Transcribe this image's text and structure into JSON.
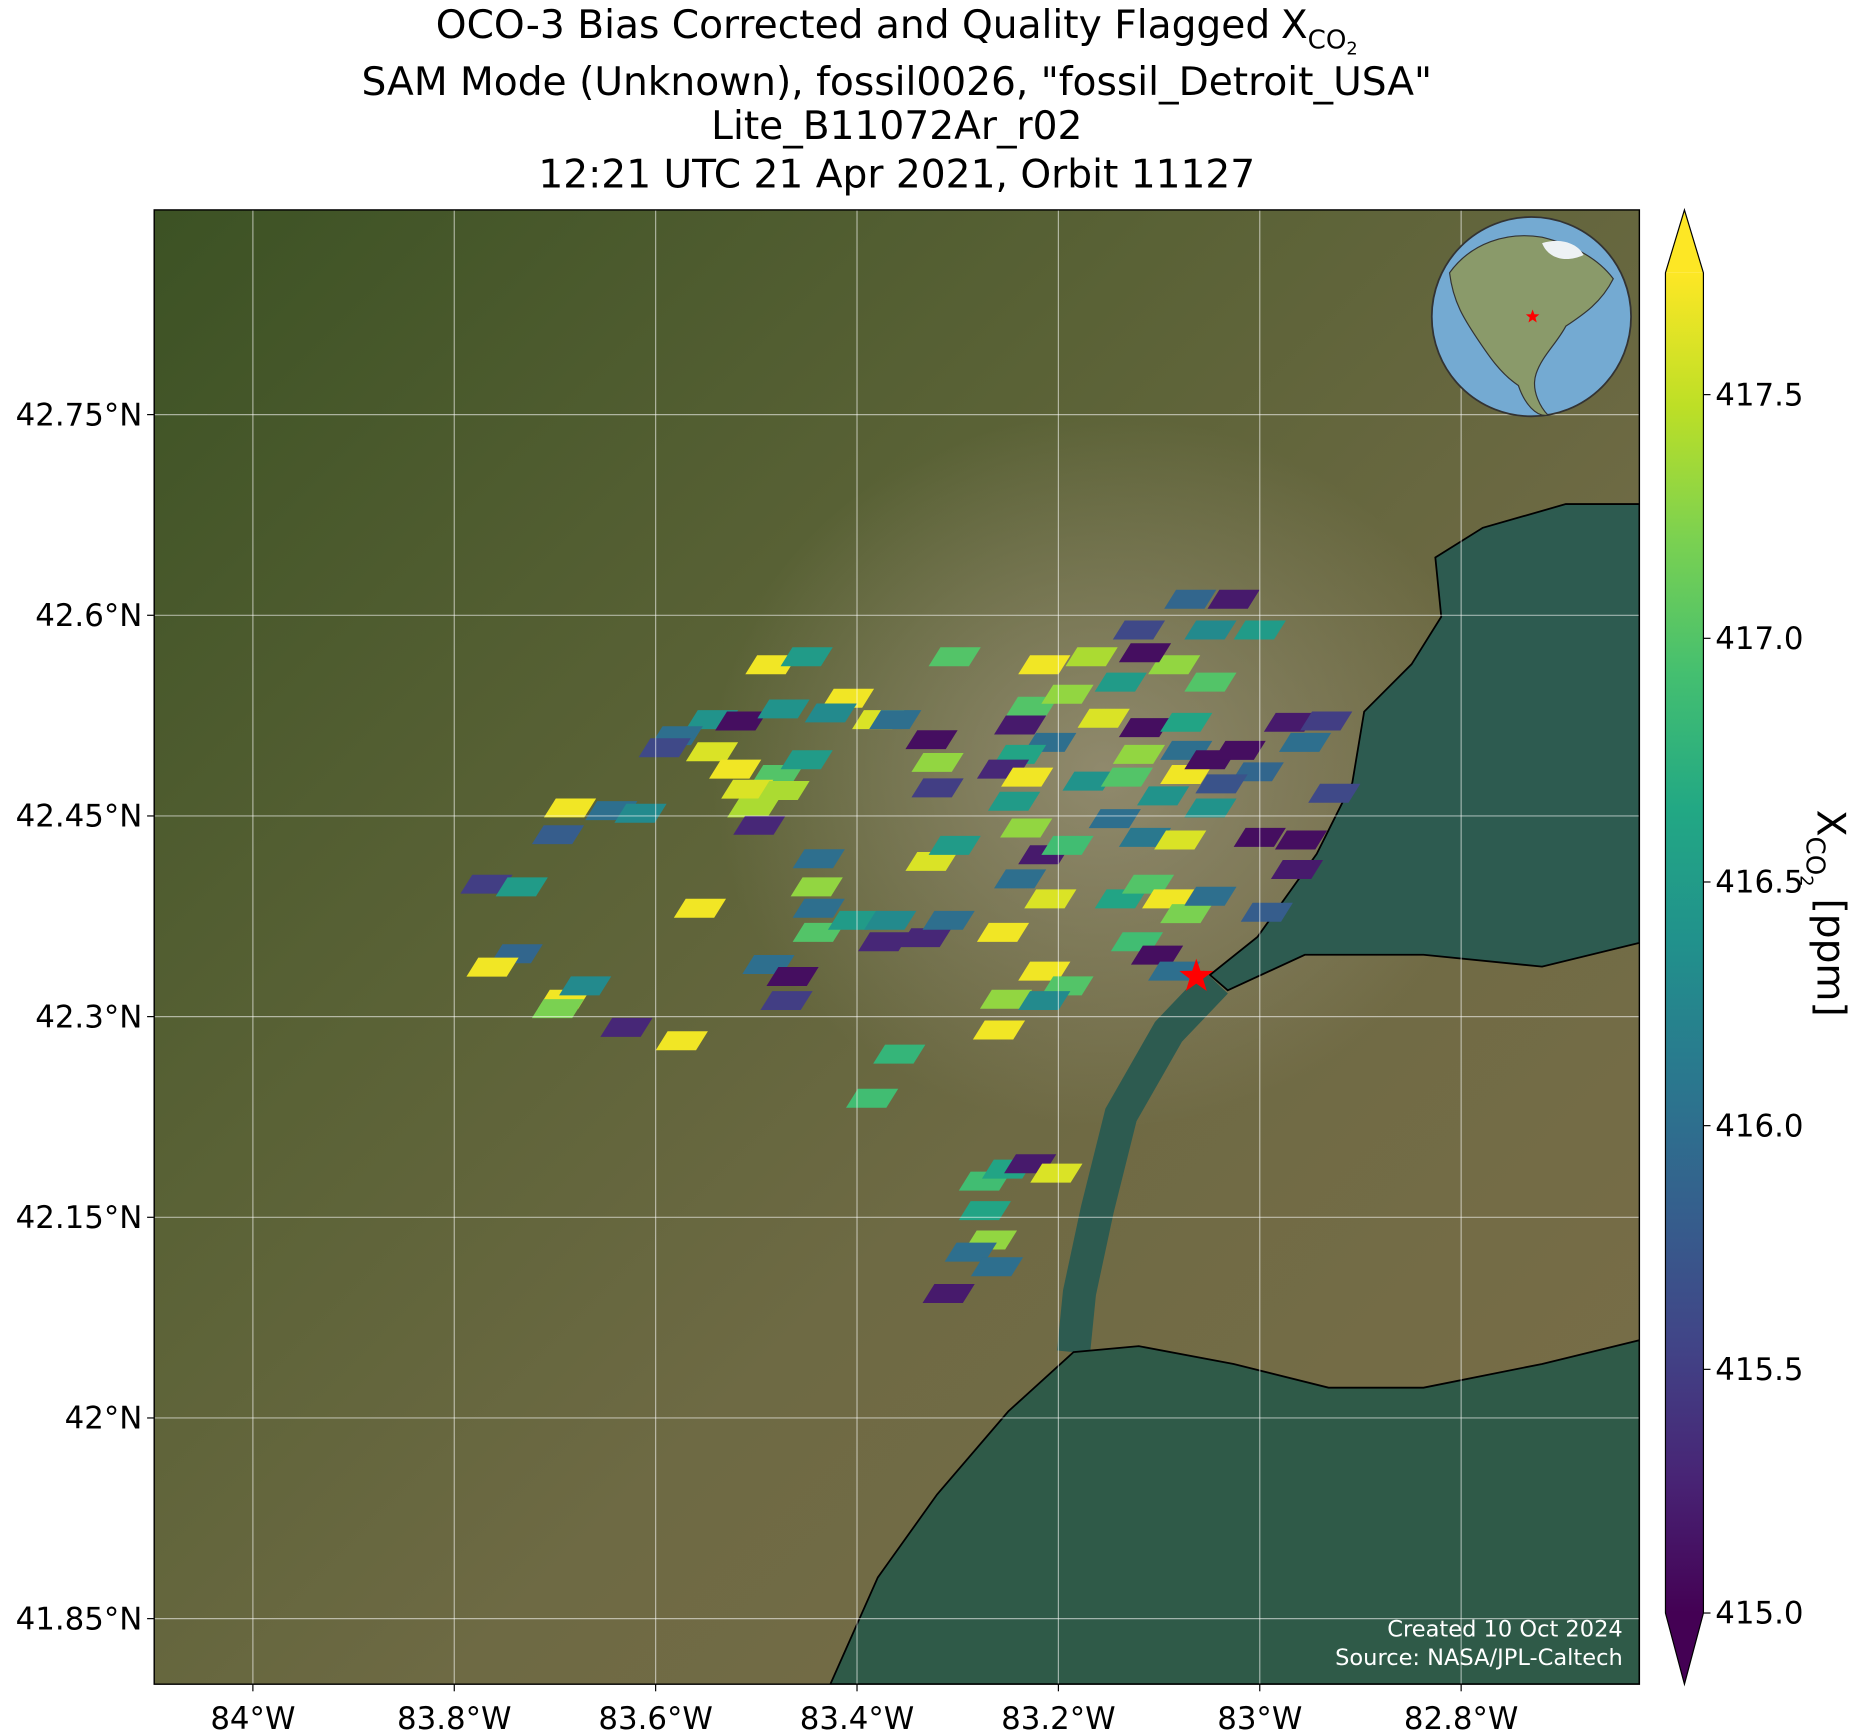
{
  "chart_data": {
    "type": "map",
    "title_lines": [
      "OCO-3 Bias Corrected and Quality Flagged",
      "SAM Mode (Unknown), fossil0026, \"fossil_Detroit_USA\"",
      "Lite_B11072Ar_r02",
      "12:21 UTC 21 Apr 2021, Orbit 11127"
    ],
    "quantity": {
      "symbol": "X",
      "sub": "CO",
      "sub2": "2"
    },
    "xlim": [
      -84.098,
      -82.623
    ],
    "ylim": [
      41.801,
      42.903
    ],
    "xticks": [
      {
        "value": -84,
        "label": "84°W"
      },
      {
        "value": -83.8,
        "label": "83.8°W"
      },
      {
        "value": -83.6,
        "label": "83.6°W"
      },
      {
        "value": -83.4,
        "label": "83.4°W"
      },
      {
        "value": -83.2,
        "label": "83.2°W"
      },
      {
        "value": -83,
        "label": "83°W"
      },
      {
        "value": -82.8,
        "label": "82.8°W"
      }
    ],
    "yticks": [
      {
        "value": 41.85,
        "label": "41.85°N"
      },
      {
        "value": 42,
        "label": "42°N"
      },
      {
        "value": 42.15,
        "label": "42.15°N"
      },
      {
        "value": 42.3,
        "label": "42.3°N"
      },
      {
        "value": 42.45,
        "label": "42.45°N"
      },
      {
        "value": 42.6,
        "label": "42.6°N"
      },
      {
        "value": 42.75,
        "label": "42.75°N"
      }
    ],
    "grid": true,
    "soundings": {
      "x": [
        -83.485,
        -83.45,
        -83.409,
        -83.379,
        -83.544,
        -83.579,
        -83.515,
        -83.473,
        -83.426,
        -83.362,
        -83.591,
        -83.544,
        -83.521,
        -83.479,
        -83.45,
        -83.509,
        -83.473,
        -83.503,
        -83.497,
        -83.326,
        -83.32,
        -83.32,
        -83.303,
        -83.685,
        -83.644,
        -83.697,
        -83.615,
        -83.768,
        -83.733,
        -83.556,
        -83.438,
        -83.44,
        -83.438,
        -83.438,
        -83.403,
        -83.367,
        -83.373,
        -83.332,
        -83.309,
        -83.488,
        -83.464,
        -83.47,
        -83.326,
        -83.303,
        -83.691,
        -83.738,
        -83.762,
        -83.697,
        -83.67,
        -83.629,
        -83.574,
        -83.358,
        -83.385,
        -83.255,
        -83.252,
        -83.214,
        -83.191,
        -83.214,
        -83.259,
        -83.273,
        -83.25,
        -83.228,
        -83.202,
        -83.273,
        -83.267,
        -83.287,
        -83.261,
        -83.309,
        -83.214,
        -83.167,
        -83.138,
        -83.085,
        -83.049,
        -83.226,
        -83.191,
        -83.155,
        -83.114,
        -83.238,
        -83.208,
        -83.238,
        -83.255,
        -83.231,
        -83.244,
        -83.232,
        -83.17,
        -83.132,
        -83.12,
        -83.073,
        -83.073,
        -83.073,
        -83.049,
        -83.02,
        -83.002,
        -83.038,
        -83.096,
        -83.049,
        -83.144,
        -83.114,
        -83.079,
        -83.12,
        -83.069,
        -83.026,
        -83.0,
        -83.049,
        -83.114,
        -82.97,
        -82.934,
        -82.955,
        -82.926,
        -83.0,
        -82.959,
        -82.963,
        -83.214,
        -83.191,
        -83.238,
        -83.208,
        -83.138,
        -83.111,
        -83.091,
        -83.073,
        -83.049,
        -82.993,
        -83.122,
        -83.102,
        -83.085
      ],
      "y": [
        42.563,
        42.569,
        42.538,
        42.522,
        42.522,
        42.51,
        42.521,
        42.53,
        42.527,
        42.522,
        42.501,
        42.498,
        42.485,
        42.481,
        42.492,
        42.47,
        42.469,
        42.456,
        42.443,
        42.507,
        42.49,
        42.471,
        42.569,
        42.456,
        42.454,
        42.436,
        42.452,
        42.399,
        42.397,
        42.381,
        42.418,
        42.397,
        42.381,
        42.363,
        42.372,
        42.372,
        42.356,
        42.359,
        42.372,
        42.339,
        42.33,
        42.312,
        42.416,
        42.428,
        42.313,
        42.347,
        42.337,
        42.306,
        42.323,
        42.292,
        42.282,
        42.272,
        42.239,
        42.363,
        42.313,
        42.334,
        42.323,
        42.312,
        42.29,
        42.177,
        42.186,
        42.19,
        42.183,
        42.155,
        42.133,
        42.124,
        42.113,
        42.093,
        42.563,
        42.569,
        42.55,
        42.563,
        42.55,
        42.532,
        42.541,
        42.523,
        42.516,
        42.518,
        42.505,
        42.496,
        42.485,
        42.479,
        42.461,
        42.441,
        42.476,
        42.479,
        42.496,
        42.52,
        42.499,
        42.481,
        42.492,
        42.499,
        42.483,
        42.474,
        42.465,
        42.456,
        42.448,
        42.434,
        42.432,
        42.589,
        42.612,
        42.612,
        42.589,
        42.589,
        42.572,
        42.52,
        42.521,
        42.505,
        42.467,
        42.434,
        42.432,
        42.41,
        42.421,
        42.428,
        42.403,
        42.388,
        42.388,
        42.399,
        42.388,
        42.377,
        42.39,
        42.378,
        42.356,
        42.346,
        42.334
      ],
      "values": [
        417.7,
        416.5,
        417.7,
        417.6,
        416.4,
        416.0,
        415.1,
        416.4,
        416.3,
        416.0,
        415.6,
        417.6,
        417.7,
        417.0,
        416.5,
        417.6,
        417.4,
        417.4,
        415.3,
        415.1,
        417.3,
        415.5,
        417.0,
        417.7,
        416.0,
        415.8,
        416.3,
        415.5,
        416.5,
        417.7,
        416.0,
        417.3,
        416.0,
        417.0,
        416.5,
        416.3,
        415.3,
        415.3,
        416.0,
        416.0,
        415.1,
        415.5,
        417.6,
        416.5,
        417.7,
        415.9,
        417.7,
        417.2,
        416.3,
        415.3,
        417.7,
        416.8,
        416.9,
        417.7,
        417.3,
        417.7,
        417.0,
        416.3,
        417.7,
        416.9,
        416.6,
        415.2,
        417.6,
        416.6,
        417.3,
        416.0,
        416.0,
        415.2,
        417.7,
        417.4,
        416.5,
        417.3,
        417.0,
        417.0,
        417.3,
        417.6,
        415.1,
        415.2,
        416.0,
        416.6,
        415.3,
        417.7,
        416.5,
        417.3,
        416.4,
        417.0,
        417.3,
        416.6,
        416.0,
        417.7,
        415.1,
        415.1,
        415.9,
        415.7,
        416.4,
        416.4,
        416.0,
        416.1,
        417.6,
        415.6,
        415.9,
        415.2,
        416.5,
        416.3,
        415.1,
        415.2,
        415.5,
        416.0,
        415.6,
        415.1,
        415.1,
        415.2,
        415.2,
        416.9,
        416.0,
        417.6,
        416.6,
        417.0,
        417.7,
        417.2,
        416.0,
        415.8,
        416.9,
        415.1,
        416.0
      ]
    },
    "target": {
      "x": -83.063,
      "y": 42.33,
      "color": "#ff0000"
    },
    "colorbar": {
      "lim": [
        415,
        417.75
      ],
      "ticks": [
        {
          "value": 415,
          "label": "415.0"
        },
        415.5,
        {
          "value": 416,
          "label": "416.0"
        },
        416.5,
        {
          "value": 417,
          "label": "417.0"
        },
        417.5
      ],
      "unit": "[ppm]",
      "extend": "both",
      "colormap": [
        "#440154",
        "#482475",
        "#414487",
        "#355f8d",
        "#2a788e",
        "#21918c",
        "#22a884",
        "#44bf70",
        "#7ad151",
        "#bddf26",
        "#fde725"
      ]
    },
    "footer": [
      "Created 10 Oct 2024",
      "Source: NASA/JPL-Caltech"
    ]
  }
}
